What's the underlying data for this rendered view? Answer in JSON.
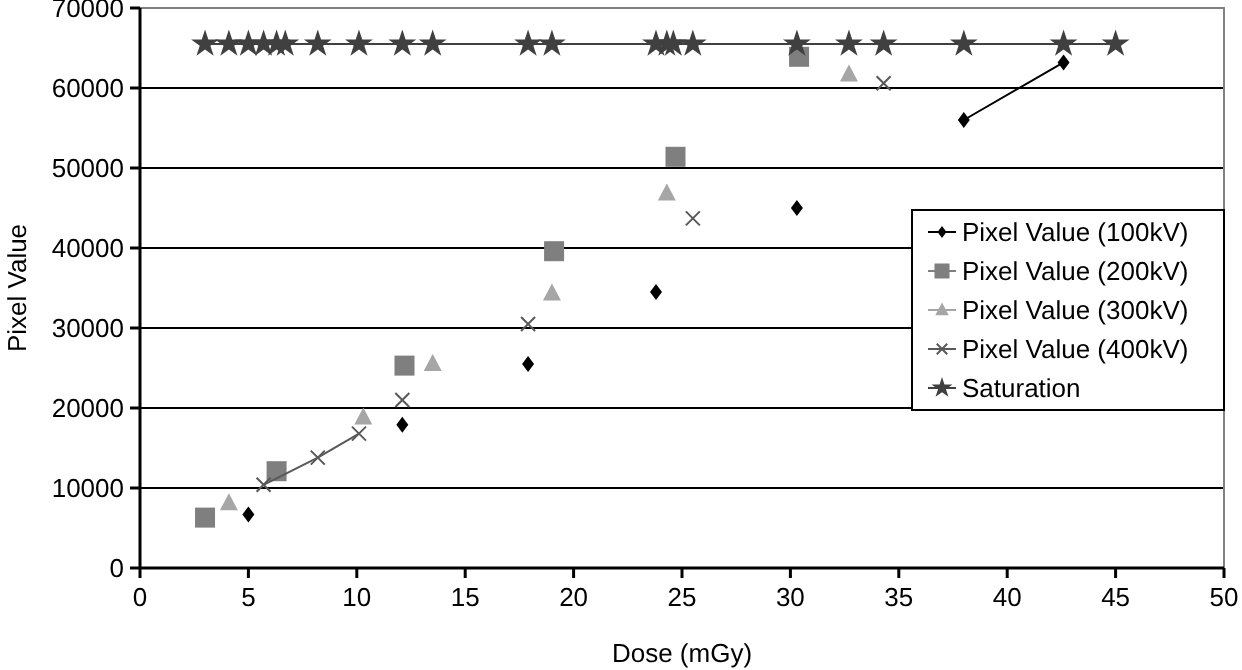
{
  "chart_data": {
    "type": "scatter",
    "xlabel": "Dose (mGy)",
    "ylabel": "Pixel Value",
    "xlim": [
      0,
      50
    ],
    "xticks": [
      0,
      5,
      10,
      15,
      20,
      25,
      30,
      35,
      40,
      45,
      50
    ],
    "ylim": [
      0,
      70000
    ],
    "yticks": [
      0,
      10000,
      20000,
      30000,
      40000,
      50000,
      60000,
      70000
    ],
    "grid": "y",
    "legend": "right",
    "series": [
      {
        "name": "Pixel Value (100kV)",
        "type": "line",
        "color": "#000000",
        "marker": "diamond",
        "x": [
          5.0,
          8.5,
          12.1,
          15,
          17.9,
          21,
          23.8,
          27,
          30.3,
          34,
          38.0,
          42.6
        ],
        "values": [
          6700,
          null,
          17900,
          null,
          25500,
          null,
          34500,
          null,
          45000,
          null,
          56000,
          63200
        ]
      },
      {
        "name": "Pixel Value (200kV)",
        "color": "#7f7f7f",
        "marker": "square",
        "x": [
          3.0,
          6.3,
          12.2,
          19.1,
          24.7,
          30.4
        ],
        "values": [
          6300,
          12100,
          25300,
          39600,
          51400,
          63900
        ]
      },
      {
        "name": "Pixel Value (300kV)",
        "color": "#a6a6a6",
        "marker": "triangle",
        "x": [
          4.1,
          10.3,
          13.5,
          19.0,
          24.3,
          32.7
        ],
        "values": [
          8100,
          18800,
          25500,
          34300,
          46800,
          61700
        ]
      },
      {
        "name": "Pixel Value (400kV)",
        "type": "line",
        "color": "#595959",
        "marker": "cross",
        "x": [
          5.7,
          8.2,
          10.1,
          11,
          12.1,
          15,
          17.9,
          21,
          25.5,
          30,
          34.3
        ],
        "values": [
          10400,
          13800,
          16800,
          null,
          21000,
          null,
          30500,
          null,
          43700,
          null,
          60600
        ]
      },
      {
        "name": "Saturation",
        "type": "line",
        "color": "#404040",
        "marker": "star",
        "x": [
          3.0,
          4.1,
          5.0,
          5.7,
          6.3,
          6.7,
          8.2,
          10.1,
          12.1,
          13.5,
          17.9,
          19.0,
          23.8,
          24.3,
          24.6,
          25.5,
          30.3,
          32.7,
          34.3,
          38.0,
          42.6,
          45.0
        ],
        "values": [
          65500,
          65500,
          65500,
          65500,
          65500,
          65500,
          65500,
          65500,
          65500,
          65500,
          65500,
          65500,
          65500,
          65500,
          65500,
          65500,
          65500,
          65500,
          65500,
          65500,
          65500,
          65500
        ]
      }
    ]
  }
}
